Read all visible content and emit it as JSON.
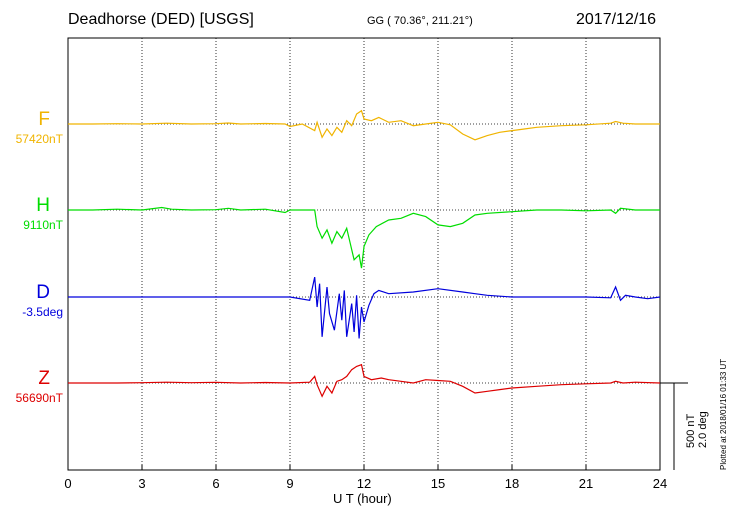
{
  "header": {
    "station": "Deadhorse (DED)  [USGS]",
    "coords": "GG ( 70.36°, 211.21°)",
    "date": "2017/12/16"
  },
  "footer": {
    "plotted": "Plotted at 2018/01/16 01:33 UT",
    "scale_nt": "500 nT",
    "scale_deg": "2.0 deg"
  },
  "chart_data": {
    "type": "line",
    "title": "Deadhorse (DED)  [USGS]",
    "xlabel": "U T (hour)",
    "xlim": [
      0,
      24
    ],
    "xticks": [
      "0",
      "3",
      "6",
      "9",
      "12",
      "15",
      "18",
      "21",
      "24"
    ],
    "grid": true,
    "series": [
      {
        "name": "F",
        "baseline_label": "57420nT",
        "color": "#f0b400",
        "points": [
          [
            0,
            0
          ],
          [
            1,
            0
          ],
          [
            2,
            2
          ],
          [
            3,
            0
          ],
          [
            4,
            5
          ],
          [
            5,
            0
          ],
          [
            6,
            2
          ],
          [
            6.5,
            6
          ],
          [
            7,
            0
          ],
          [
            8,
            3
          ],
          [
            8.8,
            0
          ],
          [
            9,
            -15
          ],
          [
            9.5,
            0
          ],
          [
            10,
            -40
          ],
          [
            10.1,
            10
          ],
          [
            10.3,
            -80
          ],
          [
            10.5,
            -30
          ],
          [
            10.7,
            -70
          ],
          [
            10.9,
            -20
          ],
          [
            11.1,
            -50
          ],
          [
            11.3,
            20
          ],
          [
            11.5,
            -10
          ],
          [
            11.7,
            60
          ],
          [
            11.9,
            80
          ],
          [
            12,
            30
          ],
          [
            12.3,
            20
          ],
          [
            12.6,
            40
          ],
          [
            13,
            10
          ],
          [
            13.5,
            20
          ],
          [
            14,
            -10
          ],
          [
            14.5,
            0
          ],
          [
            15,
            10
          ],
          [
            15.5,
            -5
          ],
          [
            16,
            -60
          ],
          [
            16.5,
            -95
          ],
          [
            17,
            -70
          ],
          [
            17.5,
            -50
          ],
          [
            18,
            -40
          ],
          [
            18.5,
            -30
          ],
          [
            19,
            -20
          ],
          [
            20,
            -10
          ],
          [
            21,
            -5
          ],
          [
            22,
            5
          ],
          [
            22.2,
            15
          ],
          [
            22.5,
            5
          ],
          [
            23,
            0
          ],
          [
            24,
            0
          ]
        ]
      },
      {
        "name": "H",
        "baseline_label": "9110nT",
        "color": "#00dd00",
        "points": [
          [
            0,
            0
          ],
          [
            1,
            0
          ],
          [
            2,
            5
          ],
          [
            3,
            0
          ],
          [
            3.8,
            15
          ],
          [
            4.2,
            5
          ],
          [
            5,
            0
          ],
          [
            6,
            2
          ],
          [
            6.5,
            10
          ],
          [
            7,
            0
          ],
          [
            8,
            5
          ],
          [
            8.8,
            -15
          ],
          [
            9,
            0
          ],
          [
            10,
            0
          ],
          [
            10.1,
            -100
          ],
          [
            10.3,
            -170
          ],
          [
            10.5,
            -120
          ],
          [
            10.7,
            -200
          ],
          [
            10.9,
            -130
          ],
          [
            11.1,
            -170
          ],
          [
            11.3,
            -110
          ],
          [
            11.6,
            -300
          ],
          [
            11.8,
            -270
          ],
          [
            11.9,
            -350
          ],
          [
            12,
            -220
          ],
          [
            12.2,
            -150
          ],
          [
            12.5,
            -100
          ],
          [
            13,
            -60
          ],
          [
            13.5,
            -50
          ],
          [
            14,
            -20
          ],
          [
            14.5,
            -40
          ],
          [
            15,
            -90
          ],
          [
            15.5,
            -100
          ],
          [
            16,
            -80
          ],
          [
            16.5,
            -30
          ],
          [
            17,
            -20
          ],
          [
            18,
            -10
          ],
          [
            19,
            0
          ],
          [
            20,
            0
          ],
          [
            21,
            -5
          ],
          [
            22,
            0
          ],
          [
            22.2,
            -20
          ],
          [
            22.4,
            10
          ],
          [
            23,
            0
          ],
          [
            24,
            0
          ]
        ]
      },
      {
        "name": "D",
        "baseline_label": "-3.5deg",
        "color": "#0000dd",
        "points": [
          [
            0,
            0
          ],
          [
            1,
            0
          ],
          [
            2,
            0
          ],
          [
            3,
            0
          ],
          [
            4,
            0
          ],
          [
            5,
            0
          ],
          [
            6,
            0
          ],
          [
            7,
            0
          ],
          [
            8,
            0
          ],
          [
            9,
            0
          ],
          [
            9.8,
            -20
          ],
          [
            10,
            120
          ],
          [
            10.1,
            -60
          ],
          [
            10.2,
            80
          ],
          [
            10.3,
            -240
          ],
          [
            10.5,
            60
          ],
          [
            10.6,
            -100
          ],
          [
            10.8,
            -200
          ],
          [
            11,
            20
          ],
          [
            11.1,
            -140
          ],
          [
            11.2,
            40
          ],
          [
            11.3,
            -240
          ],
          [
            11.5,
            -40
          ],
          [
            11.6,
            -210
          ],
          [
            11.7,
            10
          ],
          [
            11.8,
            -250
          ],
          [
            11.9,
            -60
          ],
          [
            12,
            -150
          ],
          [
            12.2,
            -50
          ],
          [
            12.4,
            20
          ],
          [
            12.6,
            40
          ],
          [
            13,
            20
          ],
          [
            14,
            30
          ],
          [
            15,
            50
          ],
          [
            16,
            30
          ],
          [
            16.5,
            20
          ],
          [
            17,
            10
          ],
          [
            18,
            0
          ],
          [
            19,
            0
          ],
          [
            20,
            0
          ],
          [
            21,
            0
          ],
          [
            22,
            -5
          ],
          [
            22.2,
            60
          ],
          [
            22.4,
            -20
          ],
          [
            22.6,
            10
          ],
          [
            23,
            0
          ],
          [
            23.5,
            -10
          ],
          [
            24,
            0
          ]
        ]
      },
      {
        "name": "Z",
        "baseline_label": "56690nT",
        "color": "#dd0000",
        "points": [
          [
            0,
            0
          ],
          [
            2,
            0
          ],
          [
            3,
            2
          ],
          [
            4,
            5
          ],
          [
            5,
            2
          ],
          [
            6,
            4
          ],
          [
            7,
            0
          ],
          [
            8,
            3
          ],
          [
            9,
            0
          ],
          [
            9.8,
            5
          ],
          [
            10,
            40
          ],
          [
            10.1,
            -10
          ],
          [
            10.3,
            -80
          ],
          [
            10.5,
            -20
          ],
          [
            10.7,
            -60
          ],
          [
            10.9,
            10
          ],
          [
            11.1,
            20
          ],
          [
            11.3,
            40
          ],
          [
            11.5,
            80
          ],
          [
            11.7,
            100
          ],
          [
            11.9,
            110
          ],
          [
            12,
            40
          ],
          [
            12.3,
            20
          ],
          [
            12.7,
            30
          ],
          [
            13,
            20
          ],
          [
            13.5,
            10
          ],
          [
            14,
            0
          ],
          [
            14.5,
            20
          ],
          [
            15,
            15
          ],
          [
            15.5,
            10
          ],
          [
            16,
            -20
          ],
          [
            16.5,
            -60
          ],
          [
            17,
            -50
          ],
          [
            17.5,
            -40
          ],
          [
            18,
            -30
          ],
          [
            19,
            -20
          ],
          [
            20,
            -10
          ],
          [
            21,
            -5
          ],
          [
            22,
            0
          ],
          [
            22.2,
            10
          ],
          [
            22.5,
            0
          ],
          [
            23,
            5
          ],
          [
            24,
            0
          ]
        ]
      }
    ]
  }
}
